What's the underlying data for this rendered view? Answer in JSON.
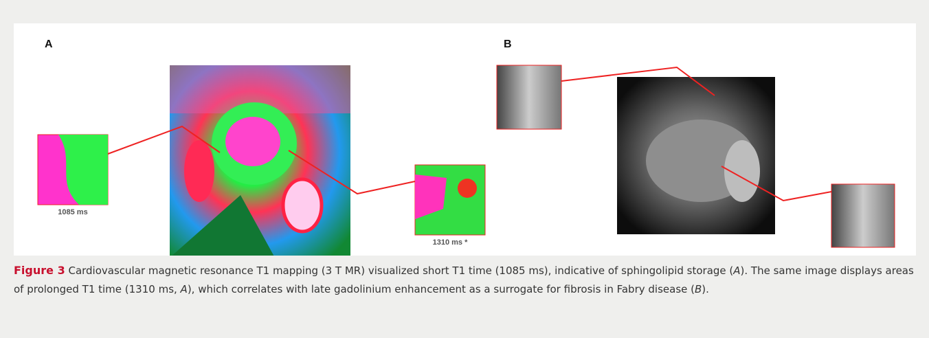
{
  "figure": {
    "panels": [
      {
        "label": "A",
        "insets": [
          {
            "label": "1085 ms"
          },
          {
            "label": "1310 ms *"
          }
        ]
      },
      {
        "label": "B"
      }
    ],
    "caption": {
      "number": "Figure 3",
      "segments": [
        " Cardiovascular magnetic resonance T1 mapping (3 T MR) visualized short T1 time (1085 ms), indicative of sphingolipid storage (",
        "A",
        "). The same image displays areas of prolonged T1 time (1310 ms, ",
        "A",
        "), which correlates with late gadolinium enhancement as a surrogate for fibrosis in Fabry disease (",
        "B",
        ")."
      ]
    }
  }
}
